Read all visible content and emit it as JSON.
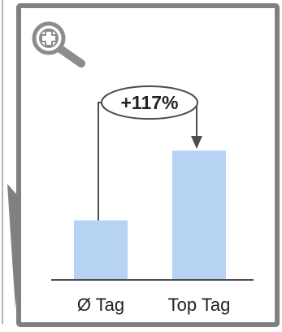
{
  "chart_data": {
    "type": "bar",
    "categories": [
      "Ø Tag",
      "Top Tag"
    ],
    "values": [
      46,
      100
    ],
    "ylim": [
      0,
      100
    ],
    "annotation": "+117%",
    "bar_color": "#b6d3f3"
  },
  "colors": {
    "frame": "#808080",
    "axis": "#4d4d4d",
    "text": "#222222",
    "zoom_icon": "#8c8c8c"
  },
  "icons": {
    "zoom": "zoom-in-icon"
  }
}
